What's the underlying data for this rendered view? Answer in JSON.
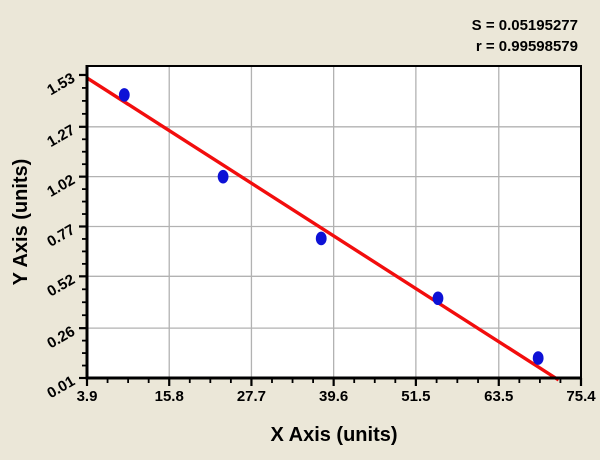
{
  "stats": {
    "s": "S = 0.05195277",
    "r": "r = 0.99598579"
  },
  "chart_data": {
    "type": "scatter",
    "title": "",
    "xlabel": "X Axis (units)",
    "ylabel": "Y Axis (units)",
    "annotations": [
      "S = 0.05195277",
      "r = 0.99598579"
    ],
    "xlim": [
      3.9,
      75.4
    ],
    "ylim": [
      0.01,
      1.575
    ],
    "x_tick_values": [
      3.9,
      15.8,
      27.7,
      39.6,
      51.5,
      63.5,
      75.4
    ],
    "x_tick_labels": [
      "3.9",
      "15.8",
      "27.7",
      "39.6",
      "51.5",
      "63.5",
      "75.4"
    ],
    "y_tick_values": [
      0.01,
      0.26,
      0.52,
      0.77,
      1.02,
      1.27,
      1.53
    ],
    "y_tick_labels": [
      "0.01",
      "0.26",
      "0.52",
      "0.77",
      "1.02",
      "1.27",
      "1.53"
    ],
    "minor_ticks_per_interval": 3,
    "grid": true,
    "legend_position": "none",
    "points": [
      {
        "x": 9.3,
        "y": 1.43
      },
      {
        "x": 23.6,
        "y": 1.02
      },
      {
        "x": 37.8,
        "y": 0.71
      },
      {
        "x": 54.7,
        "y": 0.41
      },
      {
        "x": 69.2,
        "y": 0.11
      }
    ],
    "regression": {
      "slope": -0.02205,
      "intercept": 1.6012
    },
    "colors": {
      "page_bg": "#ebe7d8",
      "plot_bg": "#ffffff",
      "grid": "#b2b2b2",
      "frame": "#000000",
      "point": "#0d11d6",
      "line": "#f20d0d",
      "text": "#000000"
    }
  }
}
